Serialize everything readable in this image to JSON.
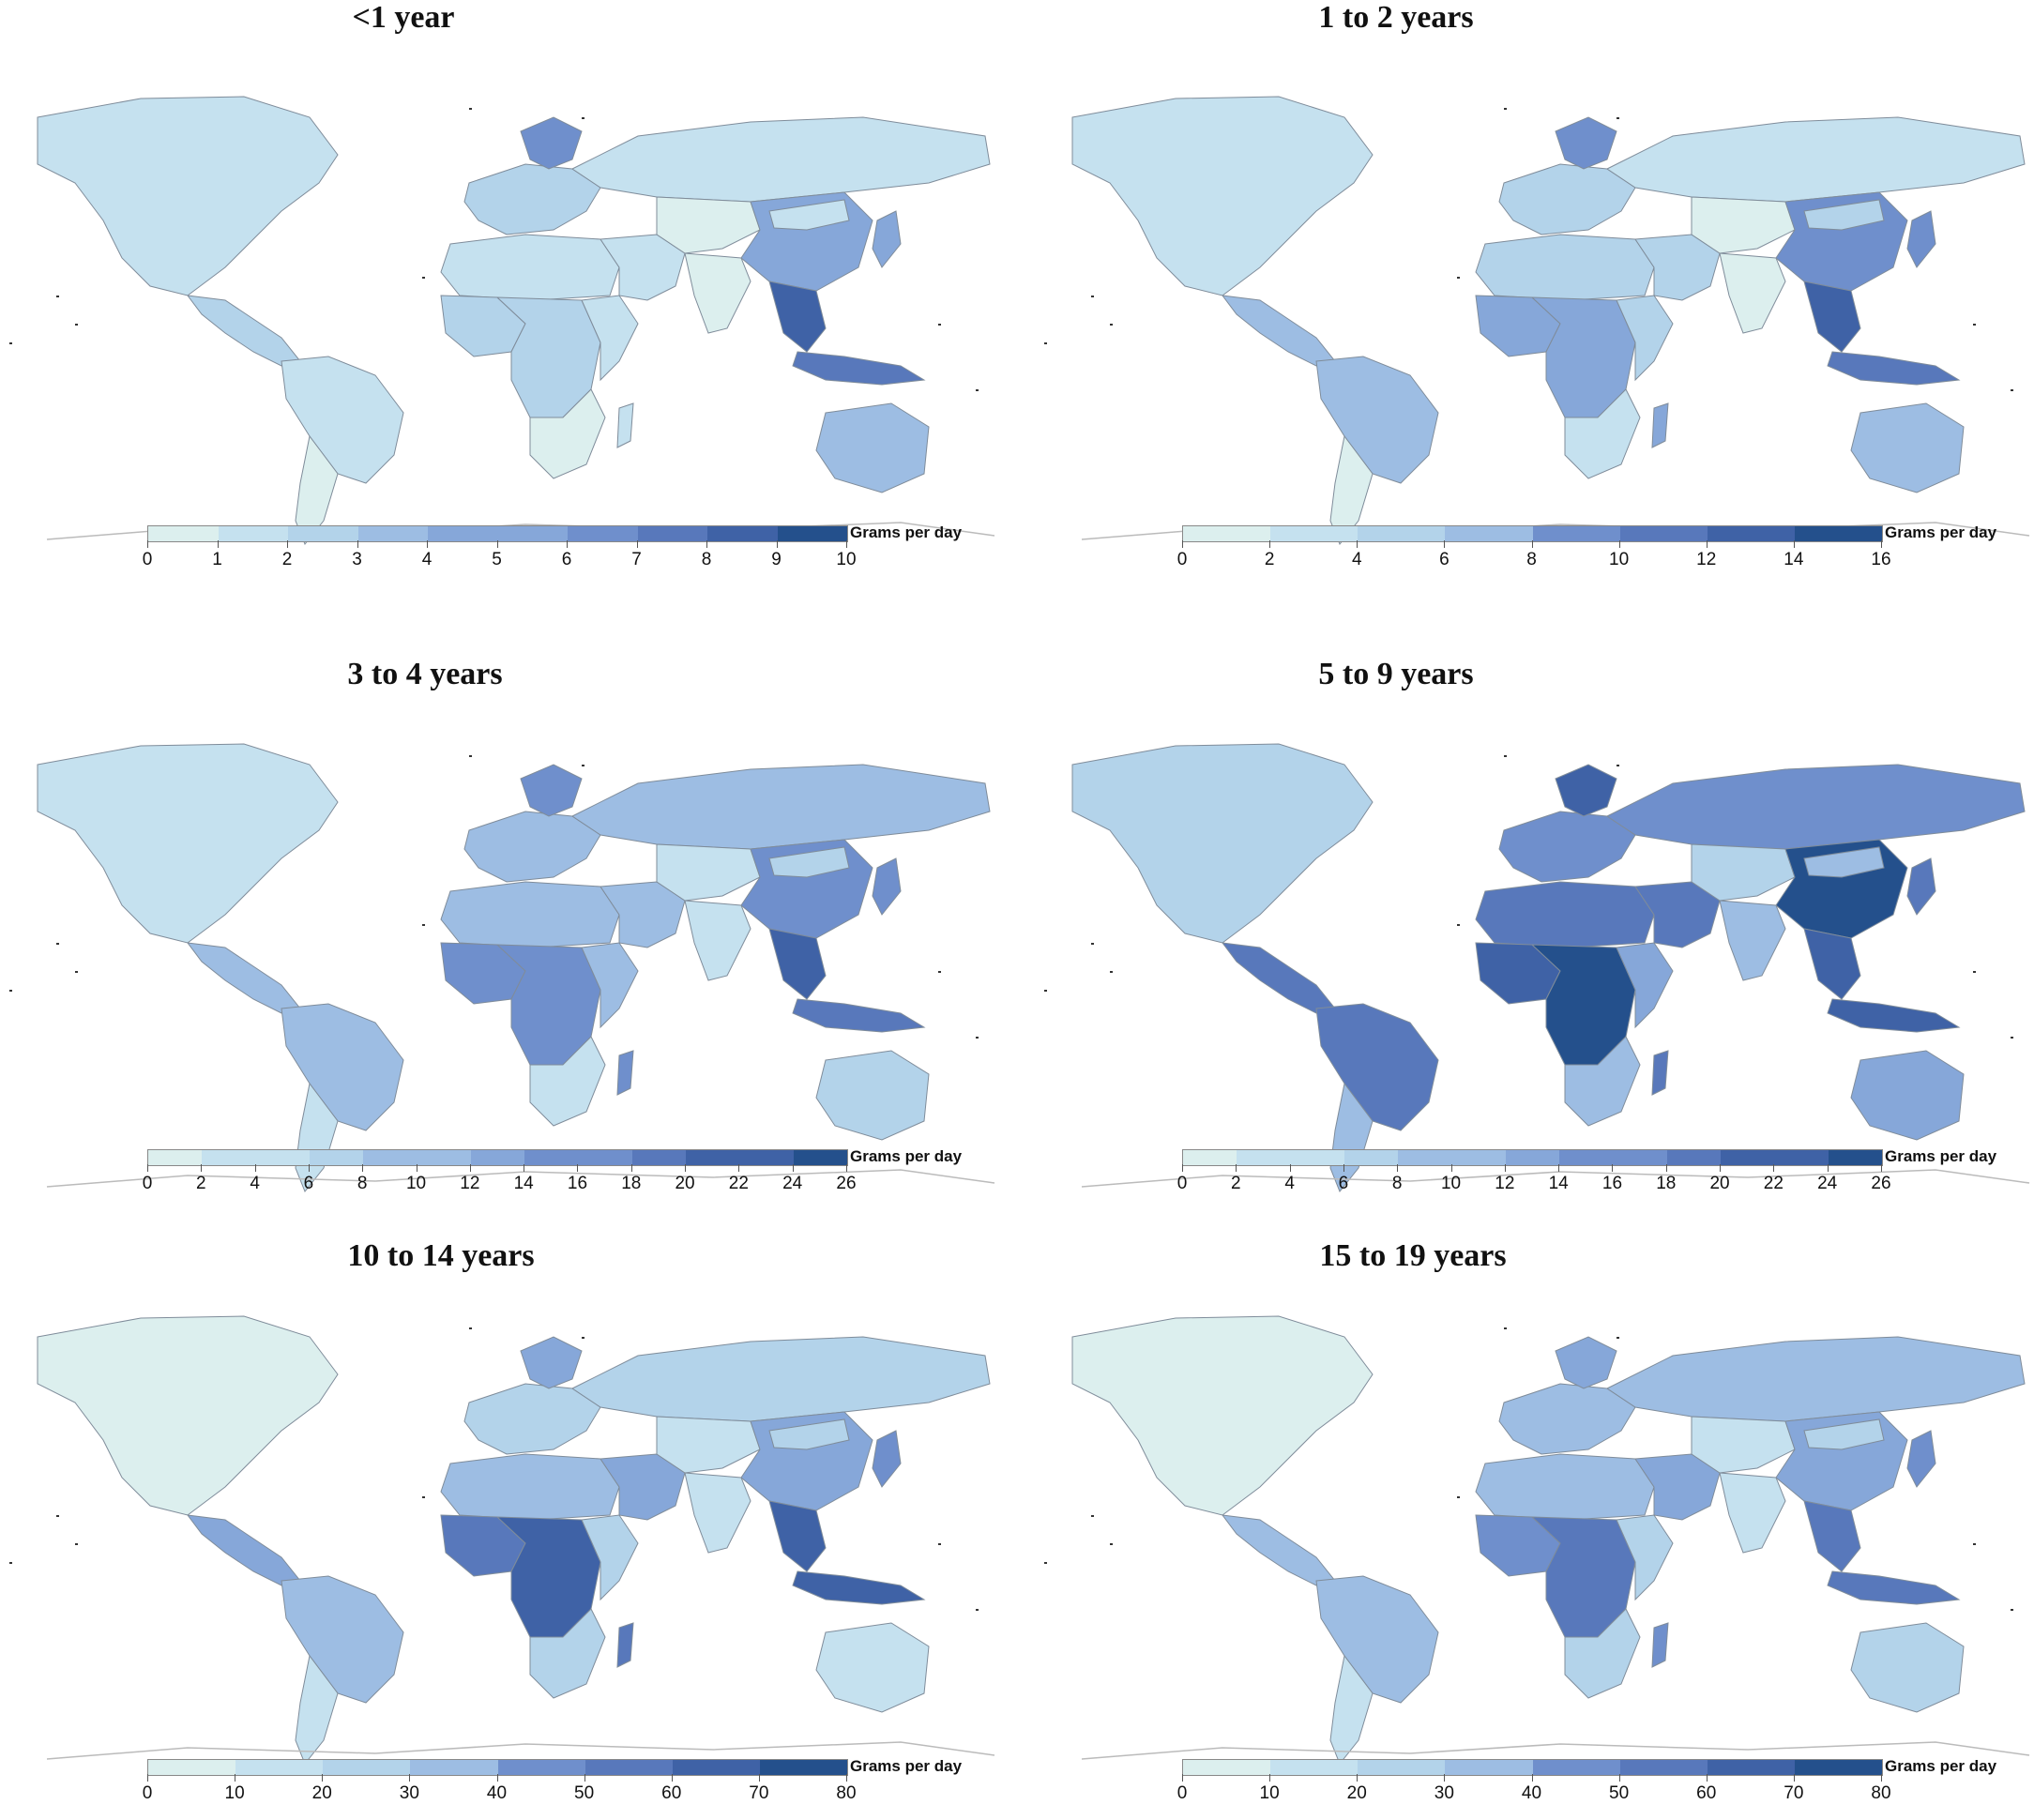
{
  "palette": [
    "#dcefee",
    "#c5e1ef",
    "#b3d3ea",
    "#9dbde3",
    "#86a7d9",
    "#6f8fcc",
    "#5878bb",
    "#3f62a6",
    "#24508c"
  ],
  "panels": [
    {
      "title": "<1 year",
      "unit": "Grams per day",
      "ticks": [
        "0",
        "1",
        "2",
        "3",
        "4",
        "5",
        "6",
        "7",
        "8",
        "9",
        "10"
      ],
      "levels": {
        "na": 1,
        "ca": 2,
        "sa": 1,
        "sac": 0,
        "eur": 2,
        "scan": 5,
        "rus": 1,
        "naf": 1,
        "waf": 2,
        "caf": 2,
        "eaf": 1,
        "saf": 0,
        "mad": 1,
        "me": 1,
        "ca_asia": 0,
        "ind": 0,
        "chn": 4,
        "mng": 1,
        "sea": 7,
        "indo": 6,
        "jpn": 4,
        "aus": 3
      }
    },
    {
      "title": "1 to 2 years",
      "unit": "Grams per day",
      "ticks": [
        "0",
        "2",
        "4",
        "6",
        "8",
        "10",
        "12",
        "14",
        "16"
      ],
      "levels": {
        "na": 1,
        "ca": 3,
        "sa": 3,
        "sac": 0,
        "eur": 2,
        "scan": 5,
        "rus": 1,
        "naf": 2,
        "waf": 4,
        "caf": 4,
        "eaf": 2,
        "saf": 1,
        "mad": 4,
        "me": 2,
        "ca_asia": 0,
        "ind": 0,
        "chn": 5,
        "mng": 2,
        "sea": 7,
        "indo": 6,
        "jpn": 5,
        "aus": 3
      }
    },
    {
      "title": "3 to 4 years",
      "unit": "Grams per day",
      "ticks": [
        "0",
        "2",
        "4",
        "6",
        "8",
        "10",
        "12",
        "14",
        "16",
        "18",
        "20",
        "22",
        "24",
        "26"
      ],
      "levels": {
        "na": 1,
        "ca": 3,
        "sa": 3,
        "sac": 1,
        "eur": 3,
        "scan": 5,
        "rus": 3,
        "naf": 3,
        "waf": 5,
        "caf": 5,
        "eaf": 3,
        "saf": 1,
        "mad": 5,
        "me": 3,
        "ca_asia": 1,
        "ind": 1,
        "chn": 5,
        "mng": 2,
        "sea": 7,
        "indo": 6,
        "jpn": 5,
        "aus": 2
      }
    },
    {
      "title": "5 to 9 years",
      "unit": "Grams per day",
      "ticks": [
        "0",
        "2",
        "4",
        "6",
        "8",
        "10",
        "12",
        "14",
        "16",
        "18",
        "20",
        "22",
        "24",
        "26"
      ],
      "levels": {
        "na": 2,
        "ca": 6,
        "sa": 6,
        "sac": 3,
        "eur": 5,
        "scan": 7,
        "rus": 5,
        "naf": 6,
        "waf": 7,
        "caf": 8,
        "eaf": 4,
        "saf": 3,
        "mad": 6,
        "me": 6,
        "ca_asia": 2,
        "ind": 3,
        "chn": 8,
        "mng": 3,
        "sea": 7,
        "indo": 7,
        "jpn": 6,
        "aus": 4
      }
    },
    {
      "title": "10 to 14 years",
      "unit": "Grams per day",
      "ticks": [
        "0",
        "10",
        "20",
        "30",
        "40",
        "50",
        "60",
        "70",
        "80"
      ],
      "levels": {
        "na": 0,
        "ca": 4,
        "sa": 3,
        "sac": 1,
        "eur": 2,
        "scan": 4,
        "rus": 2,
        "naf": 3,
        "waf": 6,
        "caf": 7,
        "eaf": 2,
        "saf": 2,
        "mad": 6,
        "me": 4,
        "ca_asia": 1,
        "ind": 1,
        "chn": 4,
        "mng": 2,
        "sea": 7,
        "indo": 7,
        "jpn": 5,
        "aus": 1
      }
    },
    {
      "title": "15 to 19 years",
      "unit": "Grams per day",
      "ticks": [
        "0",
        "10",
        "20",
        "30",
        "40",
        "50",
        "60",
        "70",
        "80"
      ],
      "levels": {
        "na": 0,
        "ca": 3,
        "sa": 3,
        "sac": 1,
        "eur": 3,
        "scan": 4,
        "rus": 3,
        "naf": 3,
        "waf": 5,
        "caf": 6,
        "eaf": 2,
        "saf": 2,
        "mad": 5,
        "me": 4,
        "ca_asia": 1,
        "ind": 1,
        "chn": 4,
        "mng": 2,
        "sea": 6,
        "indo": 6,
        "jpn": 5,
        "aus": 2
      }
    }
  ]
}
